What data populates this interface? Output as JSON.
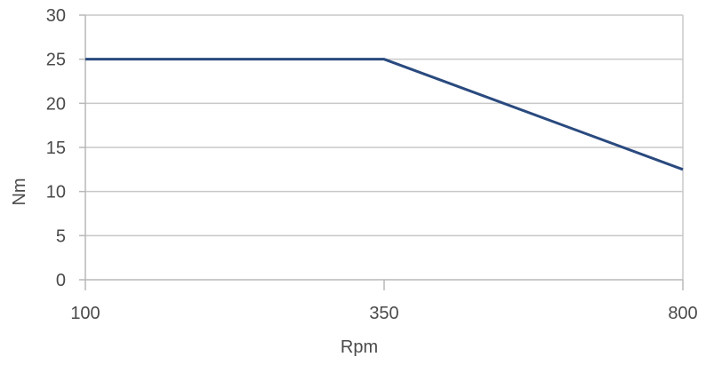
{
  "chart_data": {
    "type": "line",
    "title": "",
    "xlabel": "Rpm",
    "ylabel": "Nm",
    "x_ticks": [
      "100",
      "350",
      "800"
    ],
    "y_ticks": [
      "0",
      "5",
      "10",
      "15",
      "20",
      "25",
      "30"
    ],
    "ylim": [
      0,
      30
    ],
    "grid": "horizontal",
    "legend": "none",
    "series": [
      {
        "x": [
          "100",
          "350",
          "800"
        ],
        "values": [
          25,
          25,
          12.5
        ],
        "color": "#2a4a7f"
      }
    ]
  }
}
